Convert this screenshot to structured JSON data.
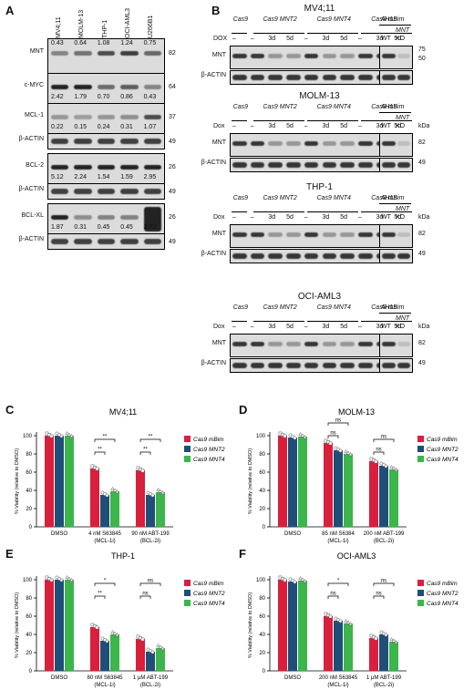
{
  "panels": {
    "A": "A",
    "B": "B",
    "C": "C",
    "D": "D",
    "E": "E",
    "F": "F"
  },
  "panelA": {
    "cell_lines": [
      "MV4;11",
      "MOLM-13",
      "THP-1",
      "OCI-AML3",
      "U266B1"
    ],
    "rows": [
      {
        "label": "MNT",
        "kda": "82",
        "quant": [
          "0.43",
          "0.64",
          "1.08",
          "1.24",
          "0.75"
        ]
      },
      {
        "label": "c-MYC",
        "kda": "64",
        "quant": [
          "2.42",
          "1.79",
          "0.70",
          "0.86",
          "0.43"
        ]
      },
      {
        "label": "MCL-1",
        "kda": "37",
        "quant": [
          "0.22",
          "0.15",
          "0.24",
          "0.31",
          "1.07"
        ]
      },
      {
        "label": "β-ACTIN",
        "kda": "49",
        "quant": []
      },
      {
        "label": "BCL-2",
        "kda": "26",
        "quant": [
          "5.12",
          "2.24",
          "1.54",
          "1.59",
          "2.95"
        ]
      },
      {
        "label": "β-ACTIN",
        "kda": "49",
        "quant": []
      },
      {
        "label": "BCL-XL",
        "kda": "26",
        "quant": [
          "1.87",
          "0.31",
          "0.45",
          "0.45",
          "3.73"
        ]
      },
      {
        "label": "β-ACTIN",
        "kda": "49",
        "quant": []
      }
    ]
  },
  "panelB": {
    "ah15": "AH15",
    "wt": "WT",
    "mnt": "MNT",
    "ko": "KO",
    "dox": "DOX",
    "dox2": "Dox",
    "kda": "kDa",
    "groups": [
      "Cas9",
      "Cas9 MNT2",
      "Cas9 MNT4",
      "Cas9 mBim"
    ],
    "lanes": [
      "–",
      "–",
      "3d",
      "5d",
      "–",
      "3d",
      "5d",
      "–",
      "3d",
      "5d"
    ],
    "blots": [
      {
        "title": "MV4;11",
        "dox": "DOX",
        "rows": [
          {
            "label": "MNT",
            "kda": [
              "75",
              "50"
            ]
          },
          {
            "label": "β-ACTIN",
            "kda": []
          }
        ]
      },
      {
        "title": "MOLM-13",
        "dox": "Dox",
        "rows": [
          {
            "label": "MNT",
            "kda": [
              "82"
            ]
          },
          {
            "label": "β-ACTIN",
            "kda": [
              "49"
            ]
          }
        ]
      },
      {
        "title": "THP-1",
        "dox": "Dox",
        "rows": [
          {
            "label": "MNT",
            "kda": [
              "82"
            ]
          },
          {
            "label": "β-ACTIN",
            "kda": [
              "49"
            ]
          }
        ]
      },
      {
        "title": "OCI-AML3",
        "dox": "Dox",
        "rows": [
          {
            "label": "MNT",
            "kda": [
              "82"
            ]
          },
          {
            "label": "β-ACTIN",
            "kda": [
              "49"
            ]
          }
        ]
      }
    ]
  },
  "chart_data": [
    {
      "panel": "C",
      "type": "bar",
      "title": "MV4;11",
      "ylabel": "% Viability (relative to DMSO)",
      "ylim": [
        0,
        100
      ],
      "categories": [
        "DMSO",
        "4 nM S63845\n(MCL-1i)",
        "90 nM ABT-199\n(BCL-2i)"
      ],
      "series": [
        {
          "name": "Cas9 mBim",
          "values": [
            100,
            64,
            62
          ]
        },
        {
          "name": "Cas9 MNT2",
          "values": [
            100,
            35,
            35
          ]
        },
        {
          "name": "Cas9 MNT4",
          "values": [
            100,
            39,
            38
          ]
        }
      ],
      "sig": [
        {
          "cat": 1,
          "upper": "**",
          "lower": "**"
        },
        {
          "cat": 2,
          "upper": "**",
          "lower": "**"
        }
      ]
    },
    {
      "panel": "D",
      "type": "bar",
      "title": "MOLM-13",
      "ylabel": "% Viability (relative to DMSO)",
      "ylim": [
        0,
        100
      ],
      "categories": [
        "DMSO",
        "85 nM S6384\n(MCL-1i)",
        "200 nM ABT-199\n(BCL-2i)"
      ],
      "series": [
        {
          "name": "Cas9 mBim",
          "values": [
            100,
            92,
            72
          ]
        },
        {
          "name": "Cas9 MNT2",
          "values": [
            98,
            84,
            67
          ]
        },
        {
          "name": "Cas9 MNT4",
          "values": [
            99,
            80,
            63
          ]
        }
      ],
      "sig": [
        {
          "cat": 1,
          "upper": "ns",
          "lower": "ns"
        },
        {
          "cat": 2,
          "upper": "ns",
          "lower": "ns"
        }
      ]
    },
    {
      "panel": "E",
      "type": "bar",
      "title": "THP-1",
      "ylabel": "% Viability (relative to DMSO)",
      "ylim": [
        0,
        100
      ],
      "categories": [
        "DMSO",
        "80 nM S63845\n(MCL-1i)",
        "1 µM ABT-199\n(BCL-2i)"
      ],
      "series": [
        {
          "name": "Cas9 mBim",
          "values": [
            100,
            48,
            35
          ]
        },
        {
          "name": "Cas9 MNT2",
          "values": [
            100,
            33,
            21
          ]
        },
        {
          "name": "Cas9 MNT4",
          "values": [
            100,
            40,
            25
          ]
        }
      ],
      "sig": [
        {
          "cat": 1,
          "upper": "*",
          "lower": "**"
        },
        {
          "cat": 2,
          "upper": "ns",
          "lower": "ns"
        }
      ]
    },
    {
      "panel": "F",
      "type": "bar",
      "title": "OCI-AML3",
      "ylabel": "% Viability (relative to DMSO)",
      "ylim": [
        0,
        100
      ],
      "categories": [
        "DMSO",
        "200 nM S63845\n(MCL-1i)",
        "1 µM ABT-199\n(BCL-2i)"
      ],
      "series": [
        {
          "name": "Cas9 mBim",
          "values": [
            100,
            60,
            36
          ]
        },
        {
          "name": "Cas9 MNT2",
          "values": [
            98,
            55,
            40
          ]
        },
        {
          "name": "Cas9 MNT4",
          "values": [
            99,
            52,
            32
          ]
        }
      ],
      "sig": [
        {
          "cat": 1,
          "upper": "*",
          "lower": "ns"
        },
        {
          "cat": 2,
          "upper": "ns",
          "lower": "ns"
        }
      ]
    }
  ],
  "colors": {
    "mBim": "#d91f3c",
    "MNT2": "#1f4e79",
    "MNT4": "#3cb54a"
  }
}
